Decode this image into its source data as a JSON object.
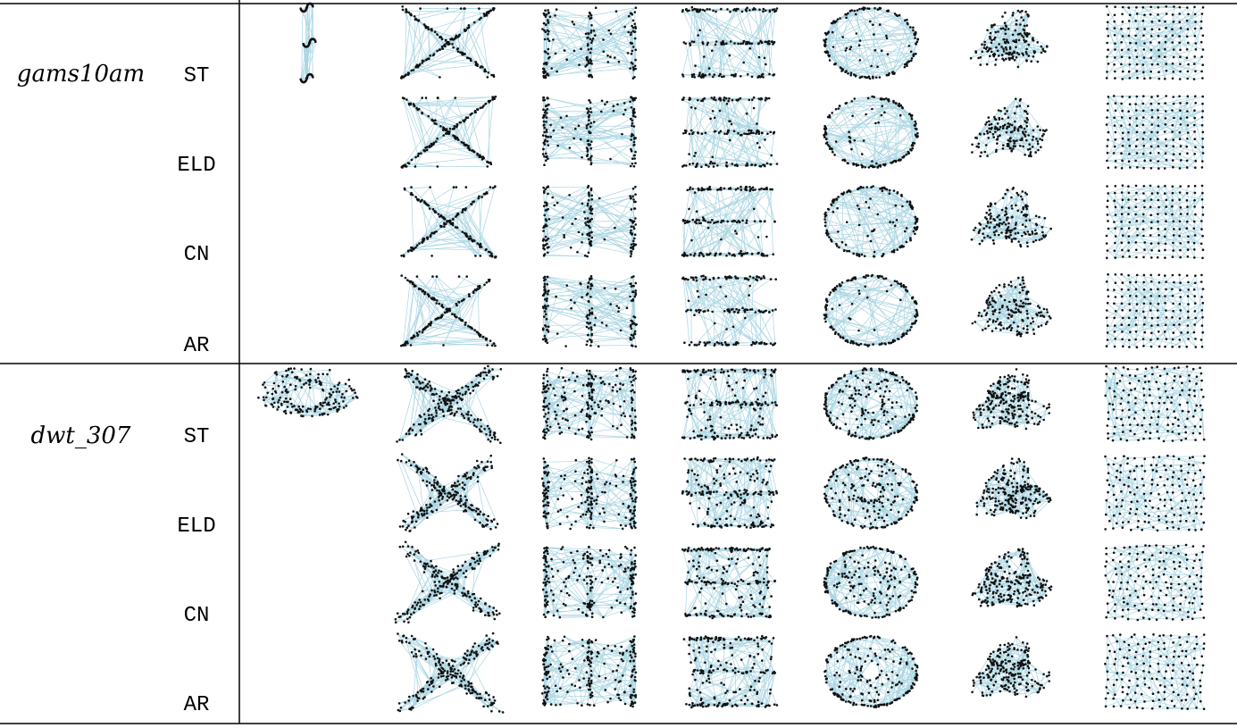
{
  "colors": {
    "edge": "#a9d5e2",
    "node": "#111111",
    "rule": "#000000"
  },
  "datasets": [
    {
      "name": "gams10am",
      "methods": [
        "ST",
        "ELD",
        "CN",
        "AR"
      ],
      "reference_shape": "figure-eight-clusters",
      "layout_shapes": [
        "x-cross",
        "vertical-bars",
        "horizontal-lines",
        "ellipse",
        "organic-blob",
        "square-lattice"
      ]
    },
    {
      "name": "dwt_307",
      "methods": [
        "ST",
        "ELD",
        "CN",
        "AR"
      ],
      "reference_shape": "ring-mesh",
      "layout_shapes": [
        "x-mesh",
        "vertical-bars-mesh",
        "horizontal-mesh",
        "ellipse-mesh",
        "blob-mesh",
        "lattice-mesh"
      ]
    }
  ]
}
